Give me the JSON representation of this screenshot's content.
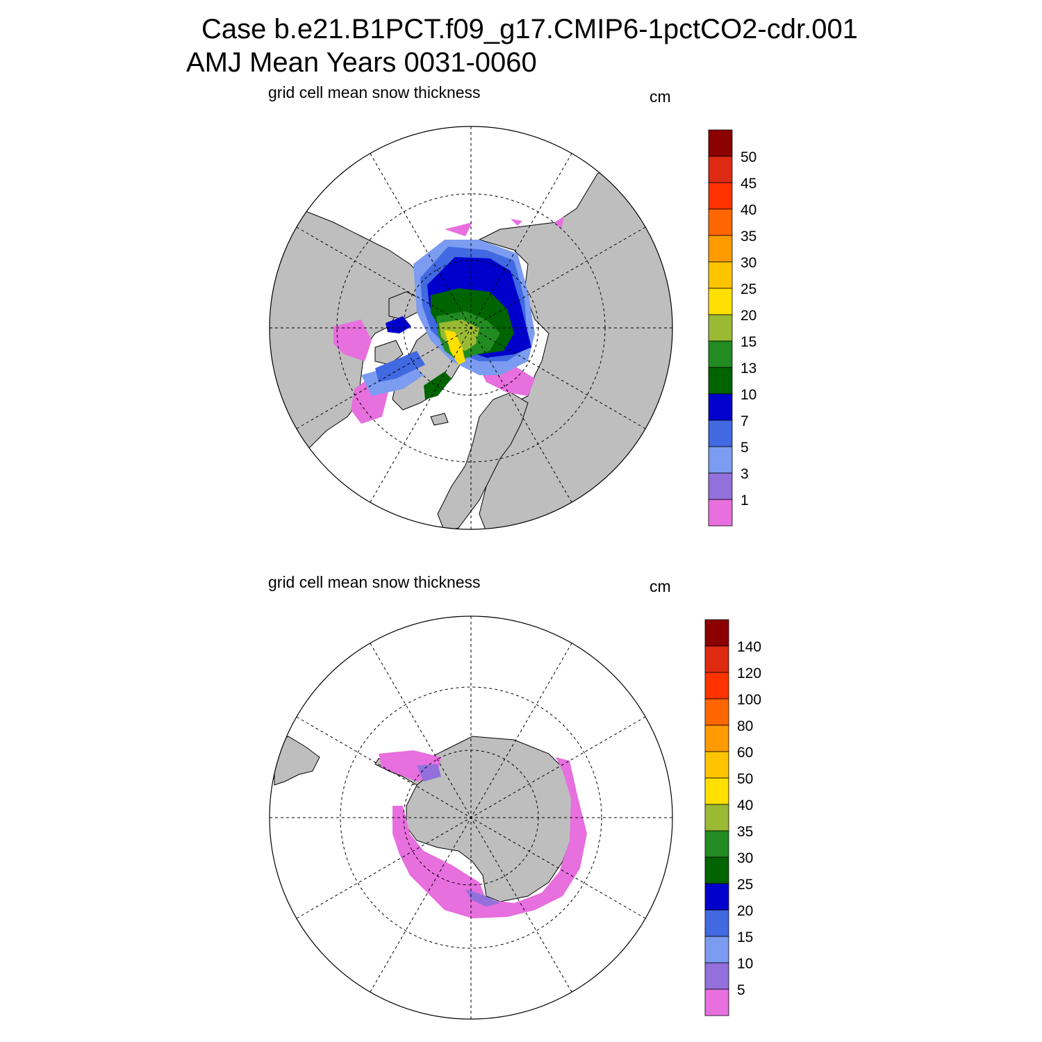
{
  "header": {
    "title_line1": "Case b.e21.B1PCT.f09_g17.CMIP6-1pctCO2-cdr.001",
    "title_line2": "AMJ Mean   Years 0031-0060"
  },
  "colors": {
    "land": "#bebebe",
    "ocean": "#ffffff",
    "levels": [
      "#e76fde",
      "#9370db",
      "#7b9cf0",
      "#4169e1",
      "#0000cd",
      "#006400",
      "#228b22",
      "#9aba34",
      "#ffe000",
      "#ffc400",
      "#ff9a00",
      "#ff6600",
      "#ff3300",
      "#dd2a10",
      "#8b0000"
    ]
  },
  "panels": [
    {
      "id": "north",
      "variable_label": "grid cell mean snow thickness",
      "units_label": "cm",
      "colorbar_ticks": [
        "1",
        "3",
        "5",
        "7",
        "10",
        "13",
        "15",
        "20",
        "25",
        "30",
        "35",
        "40",
        "45",
        "50"
      ]
    },
    {
      "id": "south",
      "variable_label": "grid cell mean snow thickness",
      "units_label": "cm",
      "colorbar_ticks": [
        "5",
        "10",
        "15",
        "20",
        "25",
        "30",
        "35",
        "40",
        "50",
        "60",
        "80",
        "100",
        "120",
        "140"
      ]
    }
  ]
}
